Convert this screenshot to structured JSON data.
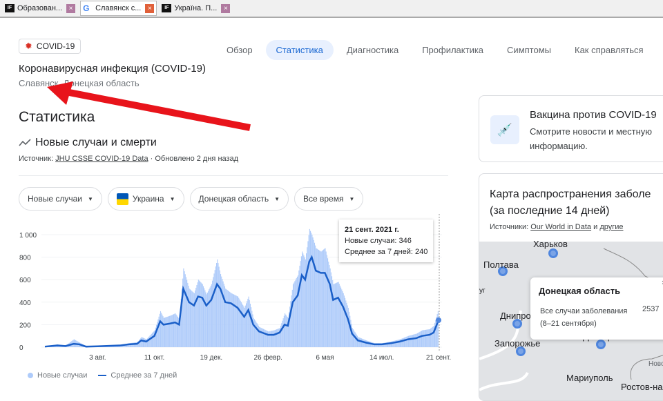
{
  "browser_tabs": [
    {
      "label": "Образован...",
      "icon": "if-favicon"
    },
    {
      "label": "Славянск с...",
      "icon": "google-favicon",
      "active": true
    },
    {
      "label": "Україна. П...",
      "icon": "if-favicon"
    }
  ],
  "chip": {
    "label": "COVID-19",
    "icon": "virus-icon"
  },
  "nav": [
    "Обзор",
    "Статистика",
    "Диагностика",
    "Профилактика",
    "Симптомы",
    "Как справляться"
  ],
  "nav_active": 1,
  "title": "Коронавирусная инфекция (COVID-19)",
  "subtitle": "Славянск, Донецкая область",
  "section_title": "Статистика",
  "chart_heading": "Новые случаи и смерти",
  "source": {
    "prefix": "Источник: ",
    "link": "JHU CSSE COVID-19 Data",
    "suffix": " · Обновлено 2 дня назад"
  },
  "filters": [
    {
      "label": "Новые случаи"
    },
    {
      "label": "Украина",
      "flag": true
    },
    {
      "label": "Донецкая область"
    },
    {
      "label": "Все время"
    }
  ],
  "tooltip": {
    "date": "21 сент. 2021 г.",
    "new_cases": "Новые случаи: 346",
    "avg": "Среднее за 7 дней: 240"
  },
  "legend": {
    "bars": "Новые случаи",
    "line": "Среднее за 7 дней"
  },
  "colors": {
    "bars": "#aecbfa",
    "line": "#1a5fc8",
    "accent": "#1967d2",
    "arrow": "#e8141b"
  },
  "chart_data": {
    "type": "bar+line",
    "ylim": [
      0,
      1100
    ],
    "yticks": [
      0,
      200,
      400,
      600,
      800,
      1000
    ],
    "ytick_labels": [
      "0",
      "200",
      "400",
      "600",
      "800",
      "1 000"
    ],
    "xrange": [
      "2020-05-31",
      "2021-09-21"
    ],
    "xticks": [
      {
        "date": "2020-08-03",
        "label": "3 авг."
      },
      {
        "date": "2020-10-11",
        "label": "11 окт."
      },
      {
        "date": "2020-12-19",
        "label": "19 дек."
      },
      {
        "date": "2021-02-26",
        "label": "26 февр."
      },
      {
        "date": "2021-05-06",
        "label": "6 мая"
      },
      {
        "date": "2021-07-14",
        "label": "14 июл."
      },
      {
        "date": "2021-09-21",
        "label": "21 сент."
      }
    ],
    "dates": [
      "2020-05-31",
      "2020-06-15",
      "2020-06-25",
      "2020-07-05",
      "2020-07-12",
      "2020-07-20",
      "2020-08-03",
      "2020-08-30",
      "2020-09-10",
      "2020-09-20",
      "2020-09-25",
      "2020-10-01",
      "2020-10-11",
      "2020-10-18",
      "2020-10-22",
      "2020-10-30",
      "2020-11-05",
      "2020-11-10",
      "2020-11-15",
      "2020-11-22",
      "2020-11-28",
      "2020-12-03",
      "2020-12-08",
      "2020-12-13",
      "2020-12-19",
      "2020-12-26",
      "2020-12-30",
      "2021-01-05",
      "2021-01-12",
      "2021-01-20",
      "2021-01-28",
      "2021-02-02",
      "2021-02-08",
      "2021-02-15",
      "2021-02-26",
      "2021-03-05",
      "2021-03-12",
      "2021-03-18",
      "2021-03-22",
      "2021-03-28",
      "2021-04-03",
      "2021-04-08",
      "2021-04-12",
      "2021-04-17",
      "2021-04-20",
      "2021-04-25",
      "2021-05-01",
      "2021-05-06",
      "2021-05-12",
      "2021-05-16",
      "2021-05-22",
      "2021-05-28",
      "2021-06-03",
      "2021-06-08",
      "2021-06-15",
      "2021-06-25",
      "2021-07-05",
      "2021-07-14",
      "2021-07-25",
      "2021-08-05",
      "2021-08-15",
      "2021-08-25",
      "2021-09-01",
      "2021-09-10",
      "2021-09-15",
      "2021-09-21"
    ],
    "series": [
      {
        "name": "Новые случаи",
        "type": "bar",
        "values": [
          8,
          25,
          15,
          70,
          40,
          8,
          10,
          20,
          35,
          45,
          90,
          70,
          150,
          320,
          260,
          280,
          300,
          250,
          700,
          520,
          480,
          600,
          560,
          470,
          560,
          780,
          650,
          520,
          480,
          450,
          350,
          450,
          260,
          180,
          140,
          150,
          170,
          300,
          260,
          560,
          640,
          850,
          780,
          1050,
          1000,
          880,
          850,
          880,
          700,
          560,
          580,
          480,
          350,
          170,
          90,
          60,
          35,
          35,
          50,
          70,
          100,
          120,
          150,
          160,
          190,
          346
        ]
      },
      {
        "name": "Среднее за 7 дней",
        "type": "line",
        "values": [
          5,
          15,
          10,
          30,
          25,
          5,
          8,
          15,
          25,
          30,
          60,
          50,
          100,
          230,
          200,
          210,
          220,
          200,
          520,
          400,
          370,
          450,
          440,
          370,
          420,
          560,
          520,
          400,
          390,
          350,
          270,
          330,
          200,
          140,
          110,
          110,
          130,
          200,
          190,
          400,
          460,
          640,
          600,
          760,
          800,
          680,
          660,
          660,
          560,
          420,
          440,
          360,
          250,
          120,
          60,
          40,
          25,
          25,
          35,
          50,
          70,
          80,
          100,
          110,
          130,
          240
        ]
      }
    ]
  },
  "vaccine_card": {
    "title": "Вакцина против COVID-19",
    "desc": "Смотрите новости и местную информацию.",
    "icon": "vaccine-icon"
  },
  "map_card": {
    "title_line1": "Карта распространения заболе",
    "title_line2": "(за последние 14 дней)",
    "sources_prefix": "Источники: ",
    "source_link": "Our World in Data",
    "and": " и ",
    "other_link": "другие",
    "cities": [
      "Харьков",
      "Полтава",
      "Днипро",
      "Запорожье",
      "Донецк",
      "Мариуполь",
      "Ростов-на",
      "Ново",
      "уг"
    ],
    "popup": {
      "title": "Донецкая область",
      "label": "Все случаи заболевания",
      "period": "(8–21 сентября)",
      "value": "2537",
      "close": "×"
    }
  }
}
